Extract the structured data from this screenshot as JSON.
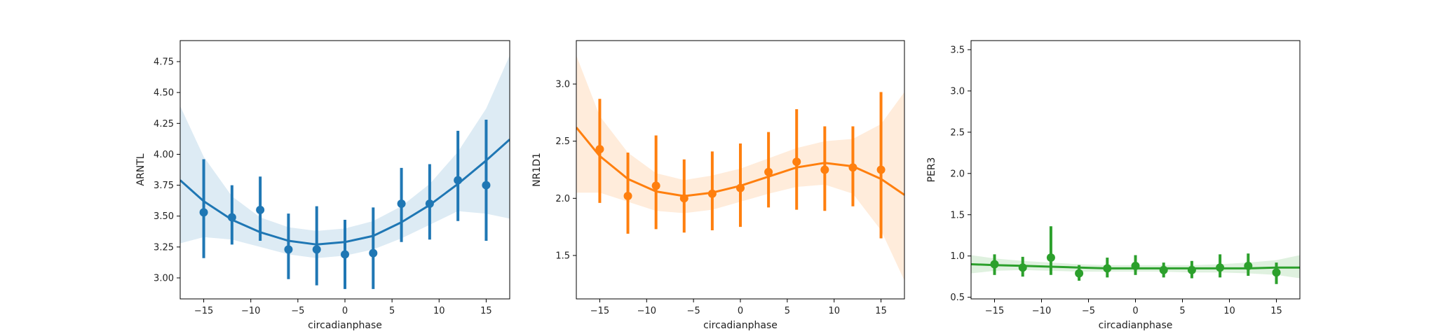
{
  "chart_data": [
    {
      "type": "scatter",
      "xlabel": "circadianphase",
      "ylabel": "ARNTL",
      "color": "#1f77b4",
      "xlim": [
        -17.5,
        17.5
      ],
      "ylim": [
        2.83,
        4.92
      ],
      "xticks": [
        -15,
        -10,
        -5,
        0,
        5,
        10,
        15
      ],
      "xtick_labels": [
        "−15",
        "−10",
        "−5",
        "0",
        "5",
        "10",
        "15"
      ],
      "yticks": [
        3.0,
        3.25,
        3.5,
        3.75,
        4.0,
        4.25,
        4.5,
        4.75
      ],
      "ytick_labels": [
        "3.00",
        "3.25",
        "3.50",
        "3.75",
        "4.00",
        "4.25",
        "4.50",
        "4.75"
      ],
      "points": [
        {
          "x": -15,
          "y": 3.53,
          "lo": 3.16,
          "hi": 3.96
        },
        {
          "x": -12,
          "y": 3.49,
          "lo": 3.27,
          "hi": 3.75
        },
        {
          "x": -9,
          "y": 3.55,
          "lo": 3.3,
          "hi": 3.82
        },
        {
          "x": -6,
          "y": 3.23,
          "lo": 2.99,
          "hi": 3.52
        },
        {
          "x": -3,
          "y": 3.23,
          "lo": 2.94,
          "hi": 3.58
        },
        {
          "x": 0,
          "y": 3.19,
          "lo": 2.91,
          "hi": 3.47
        },
        {
          "x": 3,
          "y": 3.2,
          "lo": 2.91,
          "hi": 3.57
        },
        {
          "x": 6,
          "y": 3.6,
          "lo": 3.29,
          "hi": 3.89
        },
        {
          "x": 9,
          "y": 3.6,
          "lo": 3.31,
          "hi": 3.92
        },
        {
          "x": 12,
          "y": 3.79,
          "lo": 3.46,
          "hi": 4.19
        },
        {
          "x": 15,
          "y": 3.75,
          "lo": 3.3,
          "hi": 4.28
        }
      ],
      "fit": [
        {
          "x": -17.5,
          "y": 3.79,
          "lo": 3.28,
          "hi": 4.39
        },
        {
          "x": -15,
          "y": 3.62,
          "lo": 3.33,
          "hi": 3.98
        },
        {
          "x": -12,
          "y": 3.47,
          "lo": 3.31,
          "hi": 3.66
        },
        {
          "x": -9,
          "y": 3.37,
          "lo": 3.25,
          "hi": 3.49
        },
        {
          "x": -6,
          "y": 3.3,
          "lo": 3.19,
          "hi": 3.41
        },
        {
          "x": -3,
          "y": 3.27,
          "lo": 3.16,
          "hi": 3.38
        },
        {
          "x": 0,
          "y": 3.29,
          "lo": 3.18,
          "hi": 3.4
        },
        {
          "x": 3,
          "y": 3.34,
          "lo": 3.23,
          "hi": 3.46
        },
        {
          "x": 6,
          "y": 3.45,
          "lo": 3.32,
          "hi": 3.58
        },
        {
          "x": 9,
          "y": 3.59,
          "lo": 3.43,
          "hi": 3.76
        },
        {
          "x": 12,
          "y": 3.76,
          "lo": 3.54,
          "hi": 4.02
        },
        {
          "x": 15,
          "y": 3.95,
          "lo": 3.52,
          "hi": 4.37
        },
        {
          "x": 17.5,
          "y": 4.12,
          "lo": 3.48,
          "hi": 4.8
        }
      ]
    },
    {
      "type": "scatter",
      "xlabel": "circadianphase",
      "ylabel": "NR1D1",
      "color": "#ff7f0e",
      "xlim": [
        -17.5,
        17.5
      ],
      "ylim": [
        1.12,
        3.38
      ],
      "xticks": [
        -15,
        -10,
        -5,
        0,
        5,
        10,
        15
      ],
      "xtick_labels": [
        "−15",
        "−10",
        "−5",
        "0",
        "5",
        "10",
        "15"
      ],
      "yticks": [
        1.5,
        2.0,
        2.5,
        3.0
      ],
      "ytick_labels": [
        "1.5",
        "2.0",
        "2.5",
        "3.0"
      ],
      "points": [
        {
          "x": -15,
          "y": 2.43,
          "lo": 1.96,
          "hi": 2.87
        },
        {
          "x": -12,
          "y": 2.02,
          "lo": 1.69,
          "hi": 2.4
        },
        {
          "x": -9,
          "y": 2.11,
          "lo": 1.73,
          "hi": 2.55
        },
        {
          "x": -6,
          "y": 2.0,
          "lo": 1.7,
          "hi": 2.34
        },
        {
          "x": -3,
          "y": 2.04,
          "lo": 1.72,
          "hi": 2.41
        },
        {
          "x": 0,
          "y": 2.09,
          "lo": 1.75,
          "hi": 2.48
        },
        {
          "x": 3,
          "y": 2.23,
          "lo": 1.92,
          "hi": 2.58
        },
        {
          "x": 6,
          "y": 2.32,
          "lo": 1.9,
          "hi": 2.78
        },
        {
          "x": 9,
          "y": 2.25,
          "lo": 1.89,
          "hi": 2.63
        },
        {
          "x": 12,
          "y": 2.27,
          "lo": 1.93,
          "hi": 2.63
        },
        {
          "x": 15,
          "y": 2.25,
          "lo": 1.65,
          "hi": 2.93
        }
      ],
      "fit": [
        {
          "x": -17.5,
          "y": 2.62,
          "lo": 2.05,
          "hi": 3.25
        },
        {
          "x": -15,
          "y": 2.37,
          "lo": 2.05,
          "hi": 2.72
        },
        {
          "x": -12,
          "y": 2.17,
          "lo": 1.97,
          "hi": 2.4
        },
        {
          "x": -9,
          "y": 2.06,
          "lo": 1.89,
          "hi": 2.22
        },
        {
          "x": -6,
          "y": 2.02,
          "lo": 1.87,
          "hi": 2.16
        },
        {
          "x": -3,
          "y": 2.05,
          "lo": 1.9,
          "hi": 2.2
        },
        {
          "x": 0,
          "y": 2.11,
          "lo": 1.97,
          "hi": 2.26
        },
        {
          "x": 3,
          "y": 2.19,
          "lo": 2.04,
          "hi": 2.35
        },
        {
          "x": 6,
          "y": 2.27,
          "lo": 2.1,
          "hi": 2.44
        },
        {
          "x": 9,
          "y": 2.31,
          "lo": 2.12,
          "hi": 2.5
        },
        {
          "x": 12,
          "y": 2.28,
          "lo": 2.04,
          "hi": 2.52
        },
        {
          "x": 15,
          "y": 2.17,
          "lo": 1.72,
          "hi": 2.65
        },
        {
          "x": 17.5,
          "y": 2.03,
          "lo": 1.28,
          "hi": 2.93
        }
      ]
    },
    {
      "type": "scatter",
      "xlabel": "circadianphase",
      "ylabel": "PER3",
      "color": "#2ca02c",
      "xlim": [
        -17.5,
        17.5
      ],
      "ylim": [
        0.48,
        3.61
      ],
      "xticks": [
        -15,
        -10,
        -5,
        0,
        5,
        10,
        15
      ],
      "xtick_labels": [
        "−15",
        "−10",
        "−5",
        "0",
        "5",
        "10",
        "15"
      ],
      "yticks": [
        0.5,
        1.0,
        1.5,
        2.0,
        2.5,
        3.0,
        3.5
      ],
      "ytick_labels": [
        "0.5",
        "1.0",
        "1.5",
        "2.0",
        "2.5",
        "3.0",
        "3.5"
      ],
      "points": [
        {
          "x": -15,
          "y": 0.9,
          "lo": 0.77,
          "hi": 1.02
        },
        {
          "x": -12,
          "y": 0.86,
          "lo": 0.75,
          "hi": 0.99
        },
        {
          "x": -9,
          "y": 0.98,
          "lo": 0.77,
          "hi": 1.36
        },
        {
          "x": -6,
          "y": 0.79,
          "lo": 0.7,
          "hi": 0.89
        },
        {
          "x": -3,
          "y": 0.85,
          "lo": 0.74,
          "hi": 0.98
        },
        {
          "x": 0,
          "y": 0.88,
          "lo": 0.77,
          "hi": 1.01
        },
        {
          "x": 3,
          "y": 0.83,
          "lo": 0.74,
          "hi": 0.92
        },
        {
          "x": 6,
          "y": 0.83,
          "lo": 0.73,
          "hi": 0.94
        },
        {
          "x": 9,
          "y": 0.86,
          "lo": 0.74,
          "hi": 1.02
        },
        {
          "x": 12,
          "y": 0.88,
          "lo": 0.76,
          "hi": 1.03
        },
        {
          "x": 15,
          "y": 0.8,
          "lo": 0.66,
          "hi": 0.92
        }
      ],
      "fit": [
        {
          "x": -17.5,
          "y": 0.9,
          "lo": 0.79,
          "hi": 1.01
        },
        {
          "x": -15,
          "y": 0.89,
          "lo": 0.82,
          "hi": 0.97
        },
        {
          "x": -12,
          "y": 0.88,
          "lo": 0.83,
          "hi": 0.94
        },
        {
          "x": -9,
          "y": 0.87,
          "lo": 0.82,
          "hi": 0.92
        },
        {
          "x": -6,
          "y": 0.86,
          "lo": 0.81,
          "hi": 0.9
        },
        {
          "x": -3,
          "y": 0.85,
          "lo": 0.81,
          "hi": 0.89
        },
        {
          "x": 0,
          "y": 0.85,
          "lo": 0.81,
          "hi": 0.89
        },
        {
          "x": 3,
          "y": 0.85,
          "lo": 0.81,
          "hi": 0.89
        },
        {
          "x": 6,
          "y": 0.85,
          "lo": 0.8,
          "hi": 0.89
        },
        {
          "x": 9,
          "y": 0.85,
          "lo": 0.8,
          "hi": 0.9
        },
        {
          "x": 12,
          "y": 0.85,
          "lo": 0.79,
          "hi": 0.92
        },
        {
          "x": 15,
          "y": 0.86,
          "lo": 0.77,
          "hi": 0.95
        },
        {
          "x": 17.5,
          "y": 0.86,
          "lo": 0.73,
          "hi": 1.01
        }
      ]
    }
  ]
}
